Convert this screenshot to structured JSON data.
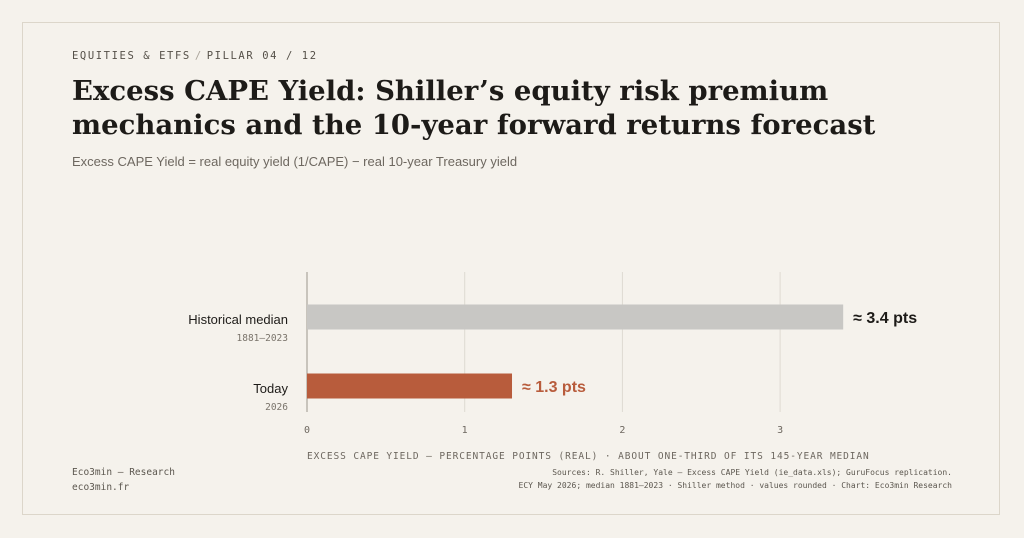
{
  "kicker": {
    "section": "EQUITIES & ETFS",
    "separator": "/",
    "pillar": "PILLAR 04 / 12"
  },
  "title": "Excess CAPE Yield: Shiller’s equity risk premium mechanics and the 10-year forward returns forecast",
  "subtitle": "Excess CAPE Yield = real equity yield (1/CAPE) − real 10-year Treasury yield",
  "colors": {
    "median_bar": "#c8c7c4",
    "today_bar": "#b85c3c",
    "today_text": "#b85c3c",
    "grid": "#dedad2"
  },
  "chart_data": {
    "type": "bar",
    "orientation": "horizontal",
    "categories": [
      "Historical median",
      "Today"
    ],
    "category_sublabels": [
      "1881–2023",
      "2026"
    ],
    "values": [
      3.4,
      1.3
    ],
    "value_labels": [
      "≈ 3.4 pts",
      "≈ 1.3 pts"
    ],
    "xlim": [
      0,
      3.5
    ],
    "xticks": [
      "0",
      "1",
      "2",
      "3"
    ],
    "xlabel": "EXCESS CAPE YIELD — PERCENTAGE POINTS (REAL) · ABOUT ONE-THIRD OF ITS 145-YEAR MEDIAN",
    "grid": true
  },
  "footer": {
    "brand": "Eco3min — Research",
    "site": "eco3min.fr",
    "sources_line1": "Sources: R. Shiller, Yale — Excess CAPE Yield (ie_data.xls); GuruFocus replication.",
    "sources_line2": "ECY May 2026; median 1881–2023 · Shiller method · values rounded · Chart: Eco3min Research"
  }
}
